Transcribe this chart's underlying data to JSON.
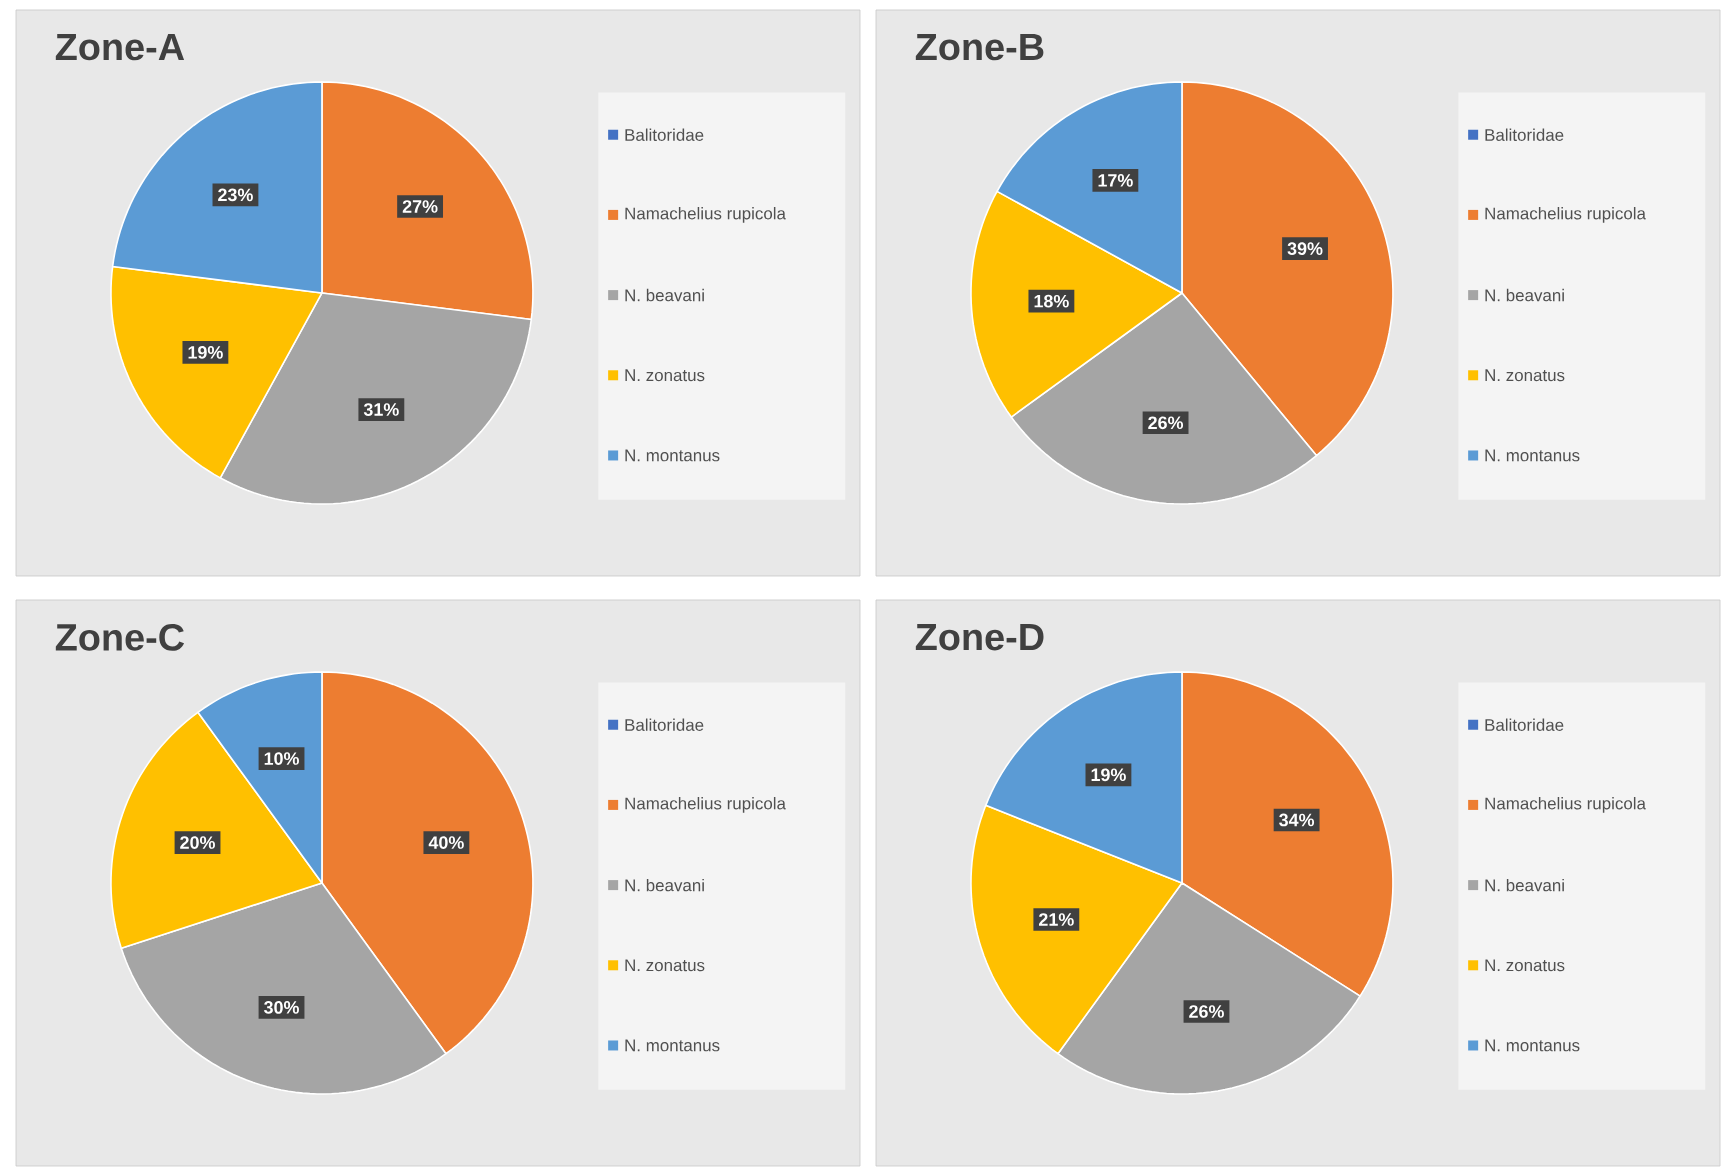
{
  "chart_data": [
    {
      "type": "pie",
      "title": "Zone-A",
      "legend": "right",
      "categories": [
        "Balitoridae",
        "Namachelius rupicola",
        "N. beavani",
        "N. zonatus",
        "N. montanus"
      ],
      "values": [
        0,
        27,
        31,
        19,
        23
      ],
      "value_labels": [
        null,
        "27%",
        "31%",
        "19%",
        "23%"
      ],
      "colors": [
        "#4472c4",
        "#ed7d31",
        "#a5a5a5",
        "#ffc000",
        "#5b9bd5"
      ]
    },
    {
      "type": "pie",
      "title": "Zone-B",
      "legend": "right",
      "categories": [
        "Balitoridae",
        "Namachelius rupicola",
        "N. beavani",
        "N. zonatus",
        "N. montanus"
      ],
      "values": [
        0,
        39,
        26,
        18,
        17
      ],
      "value_labels": [
        null,
        "39%",
        "26%",
        "18%",
        "17%"
      ],
      "colors": [
        "#4472c4",
        "#ed7d31",
        "#a5a5a5",
        "#ffc000",
        "#5b9bd5"
      ]
    },
    {
      "type": "pie",
      "title": "Zone-C",
      "legend": "right",
      "categories": [
        "Balitoridae",
        "Namachelius rupicola",
        "N. beavani",
        "N. zonatus",
        "N. montanus"
      ],
      "values": [
        0,
        40,
        30,
        20,
        10
      ],
      "value_labels": [
        null,
        "40%",
        "30%",
        "20%",
        "10%"
      ],
      "colors": [
        "#4472c4",
        "#ed7d31",
        "#a5a5a5",
        "#ffc000",
        "#5b9bd5"
      ]
    },
    {
      "type": "pie",
      "title": "Zone-D",
      "legend": "right",
      "categories": [
        "Balitoridae",
        "Namachelius rupicola",
        "N. beavani",
        "N. zonatus",
        "N. montanus"
      ],
      "values": [
        0,
        34,
        26,
        21,
        19
      ],
      "value_labels": [
        null,
        "34%",
        "26%",
        "21%",
        "19%"
      ],
      "colors": [
        "#4472c4",
        "#ed7d31",
        "#a5a5a5",
        "#ffc000",
        "#5b9bd5"
      ]
    }
  ]
}
